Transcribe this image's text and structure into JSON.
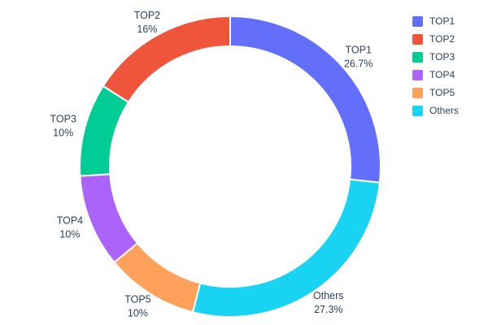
{
  "chart_data": {
    "type": "pie",
    "subtype": "donut",
    "title": "",
    "labels": [
      "TOP1",
      "TOP2",
      "TOP3",
      "TOP4",
      "TOP5",
      "Others"
    ],
    "values": [
      26.7,
      16,
      10,
      10,
      10,
      27.3
    ],
    "display_percents": [
      "26.7%",
      "16%",
      "10%",
      "10%",
      "10%",
      "27.3%"
    ],
    "colors": [
      "#636efa",
      "#ef553b",
      "#00cc96",
      "#ab63fa",
      "#ffa15a",
      "#19d3f3"
    ],
    "hole_ratio": 0.8,
    "slice_order_clockwise_from_top": [
      0,
      5,
      4,
      3,
      2,
      1
    ],
    "labels_position": "outside",
    "legend": {
      "position": "top-right",
      "entries": [
        "TOP1",
        "TOP2",
        "TOP3",
        "TOP4",
        "TOP5",
        "Others"
      ]
    },
    "text_color": "#2a3f5f",
    "background_color": "#ffffff",
    "slice_gap_color": "#ffffff"
  }
}
